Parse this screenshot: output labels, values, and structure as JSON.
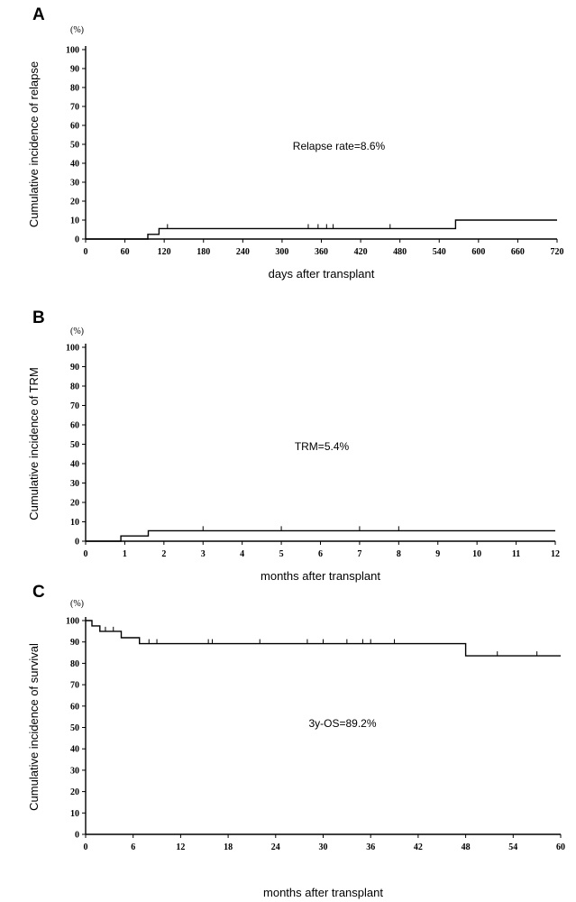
{
  "chart_data": [
    {
      "type": "line",
      "panel": "A",
      "unit": "(%)",
      "ylabel": "Cumulative incidence of relapse",
      "xlabel": "days after transplant",
      "annotation": "Relapse rate=8.6%",
      "xlim": [
        0,
        720
      ],
      "ylim": [
        0,
        100
      ],
      "xticks": [
        "0",
        "60",
        "120",
        "180",
        "240",
        "300",
        "360",
        "420",
        "480",
        "540",
        "600",
        "660",
        "720"
      ],
      "yticks": [
        "0",
        "10",
        "20",
        "30",
        "40",
        "50",
        "60",
        "70",
        "80",
        "90",
        "100"
      ],
      "step": [
        [
          0,
          0
        ],
        [
          95,
          0
        ],
        [
          95,
          2.5
        ],
        [
          112,
          2.5
        ],
        [
          112,
          5.5
        ],
        [
          565,
          5.5
        ],
        [
          565,
          10
        ],
        [
          720,
          10
        ]
      ],
      "censored_x": [
        125,
        340,
        355,
        368,
        378,
        465
      ]
    },
    {
      "type": "line",
      "panel": "B",
      "unit": "(%)",
      "ylabel": "Cumulative incidence of TRM",
      "xlabel": "months after transplant",
      "annotation": "TRM=5.4%",
      "xlim": [
        0,
        12
      ],
      "ylim": [
        0,
        100
      ],
      "xticks": [
        "0",
        "1",
        "2",
        "3",
        "4",
        "5",
        "6",
        "7",
        "8",
        "9",
        "10",
        "11",
        "12"
      ],
      "yticks": [
        "0",
        "10",
        "20",
        "30",
        "40",
        "50",
        "60",
        "70",
        "80",
        "90",
        "100"
      ],
      "step": [
        [
          0,
          0
        ],
        [
          0.9,
          0
        ],
        [
          0.9,
          2.7
        ],
        [
          1.6,
          2.7
        ],
        [
          1.6,
          5.4
        ],
        [
          12,
          5.4
        ]
      ],
      "censored_x": [
        3,
        5,
        7,
        8
      ]
    },
    {
      "type": "line",
      "panel": "C",
      "unit": "(%)",
      "ylabel": "Cumulative incidence of survival",
      "xlabel": "months after transplant",
      "annotation": "3y-OS=89.2%",
      "xlim": [
        0,
        60
      ],
      "ylim": [
        0,
        100
      ],
      "xticks": [
        "0",
        "6",
        "12",
        "18",
        "24",
        "30",
        "36",
        "42",
        "48",
        "54",
        "60"
      ],
      "yticks": [
        "0",
        "10",
        "20",
        "30",
        "40",
        "50",
        "60",
        "70",
        "80",
        "90",
        "100"
      ],
      "step": [
        [
          0,
          100
        ],
        [
          0.8,
          100
        ],
        [
          0.8,
          97.5
        ],
        [
          1.8,
          97.5
        ],
        [
          1.8,
          95
        ],
        [
          4.5,
          95
        ],
        [
          4.5,
          92
        ],
        [
          6.8,
          92
        ],
        [
          6.8,
          89.2
        ],
        [
          48,
          89.2
        ],
        [
          48,
          83.5
        ],
        [
          60,
          83.5
        ]
      ],
      "censored_x": [
        2.5,
        3.5,
        4.5,
        8,
        9,
        15.5,
        16,
        22,
        28,
        30,
        33,
        35,
        36,
        39,
        52,
        57
      ]
    }
  ]
}
